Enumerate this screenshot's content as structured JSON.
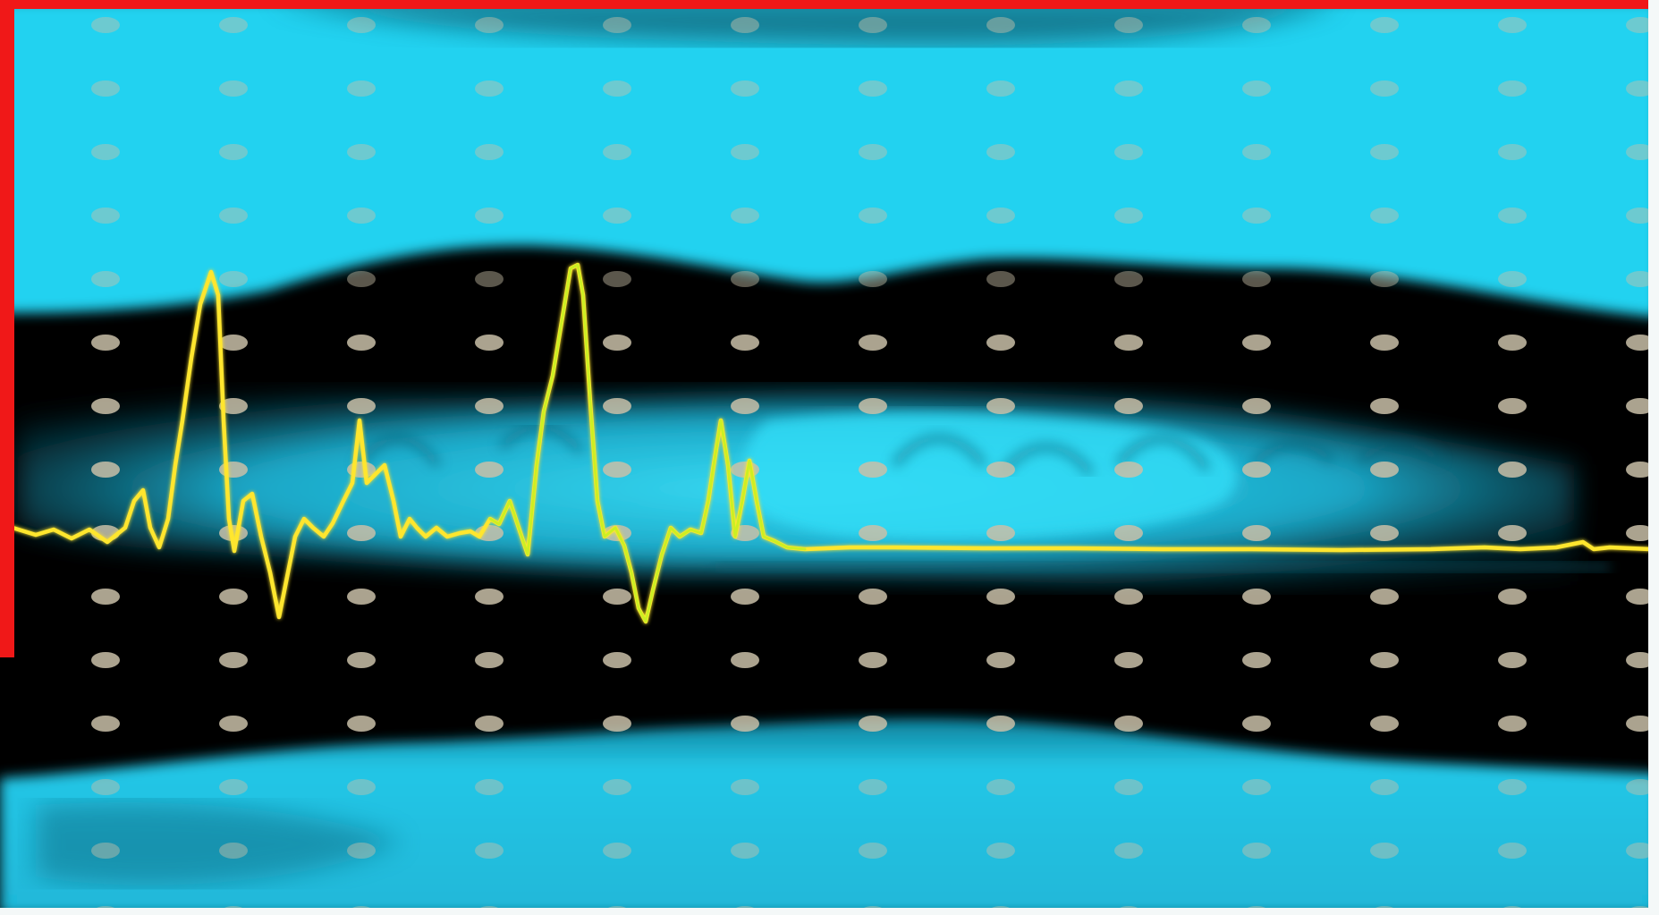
{
  "image": {
    "kind": "ultrasound-m-mode-with-ecg",
    "colors": {
      "tissue": "#22d2f0",
      "tissue_dark": "#0b6f86",
      "background": "#000000",
      "grid_dots": "#c9c0a8",
      "ecg_trace": "#ffe62e",
      "frame_red": "#f01818",
      "frame_white": "#f4f8f8"
    }
  }
}
